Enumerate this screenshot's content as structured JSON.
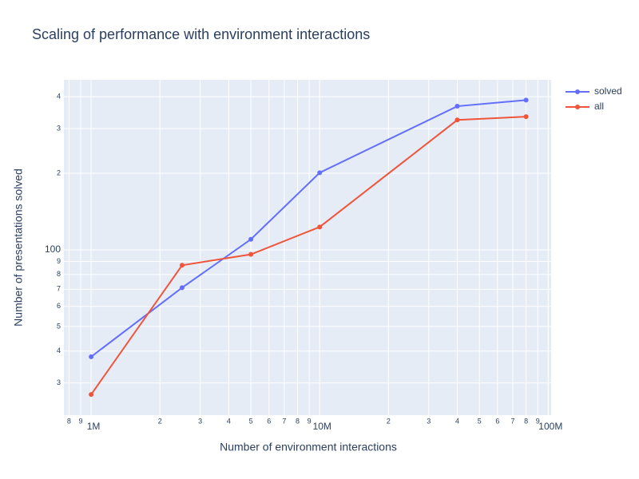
{
  "chart_data": {
    "type": "line",
    "title": "Scaling of performance with environment interactions",
    "x_label": "Number of environment interactions",
    "y_label": "Number of presentations solved",
    "log_x": true,
    "log_y": true,
    "grid": true,
    "legend": "top-right",
    "x": [
      1000000,
      2500000,
      5000000,
      10000000,
      40000000,
      80000000
    ],
    "series": [
      {
        "name": "solved",
        "color": "#636efa",
        "values": [
          38,
          71,
          110,
          201,
          367,
          388
        ]
      },
      {
        "name": "all",
        "color": "#ef553b",
        "values": [
          27,
          87,
          96,
          123,
          324,
          334
        ]
      }
    ],
    "xlim": [
      760000,
      103000000
    ],
    "xticks": [
      {
        "value": 800000,
        "label": "8"
      },
      {
        "value": 900000,
        "label": "9"
      },
      {
        "value": 1000000,
        "label": "1M"
      },
      {
        "value": 2000000,
        "label": "2"
      },
      {
        "value": 3000000,
        "label": "3"
      },
      {
        "value": 4000000,
        "label": "4"
      },
      {
        "value": 5000000,
        "label": "5"
      },
      {
        "value": 6000000,
        "label": "6"
      },
      {
        "value": 7000000,
        "label": "7"
      },
      {
        "value": 8000000,
        "label": "8"
      },
      {
        "value": 9000000,
        "label": "9"
      },
      {
        "value": 10000000,
        "label": "10M"
      },
      {
        "value": 20000000,
        "label": "2"
      },
      {
        "value": 30000000,
        "label": "3"
      },
      {
        "value": 40000000,
        "label": "4"
      },
      {
        "value": 50000000,
        "label": "5"
      },
      {
        "value": 60000000,
        "label": "6"
      },
      {
        "value": 70000000,
        "label": "7"
      },
      {
        "value": 80000000,
        "label": "8"
      },
      {
        "value": 90000000,
        "label": "9"
      },
      {
        "value": 100000000,
        "label": "100M"
      }
    ],
    "ylim": [
      22.4,
      466
    ],
    "yticks": [
      {
        "value": 30,
        "label": "3"
      },
      {
        "value": 40,
        "label": "4"
      },
      {
        "value": 50,
        "label": "5"
      },
      {
        "value": 60,
        "label": "6"
      },
      {
        "value": 70,
        "label": "7"
      },
      {
        "value": 80,
        "label": "8"
      },
      {
        "value": 90,
        "label": "9"
      },
      100,
      {
        "value": 200,
        "label": "2"
      },
      {
        "value": 300,
        "label": "3"
      },
      {
        "value": 400,
        "label": "4"
      }
    ]
  }
}
